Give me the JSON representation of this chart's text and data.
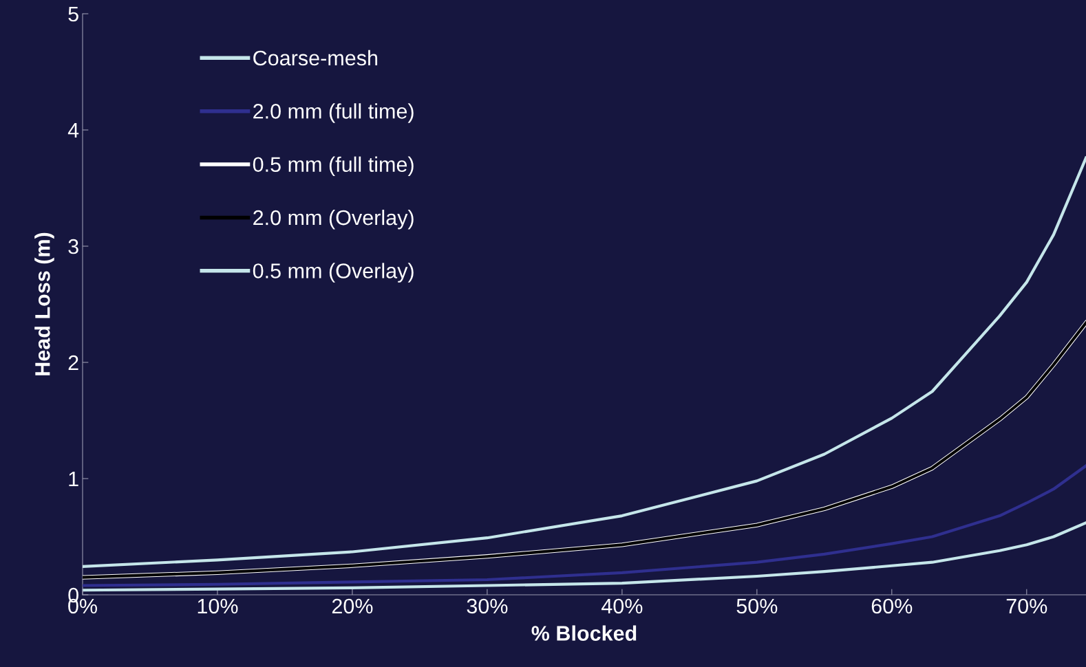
{
  "chart_data": {
    "type": "line",
    "xlabel": "% Blocked",
    "ylabel": "Head Loss (m)",
    "x": [
      0,
      10,
      20,
      30,
      40,
      50,
      55,
      60,
      63,
      68,
      70,
      72,
      74.4
    ],
    "series": [
      {
        "name": "Coarse-mesh",
        "color": "#c5e6ea",
        "values": [
          0.04,
          0.05,
          0.06,
          0.08,
          0.1,
          0.16,
          0.2,
          0.25,
          0.28,
          0.38,
          0.43,
          0.5,
          0.62
        ]
      },
      {
        "name": "2.0 mm (full time)",
        "color": "#2f2f8f",
        "values": [
          0.08,
          0.09,
          0.11,
          0.13,
          0.19,
          0.28,
          0.35,
          0.44,
          0.5,
          0.68,
          0.79,
          0.91,
          1.11
        ]
      },
      {
        "name": "0.5 mm (full time)",
        "color": "#ffffff",
        "values": [
          0.15,
          0.19,
          0.25,
          0.33,
          0.43,
          0.6,
          0.74,
          0.93,
          1.09,
          1.51,
          1.7,
          1.98,
          2.34
        ]
      },
      {
        "name": "2.0 mm (Overlay)",
        "color": "#000000",
        "values": [
          0.15,
          0.19,
          0.25,
          0.33,
          0.43,
          0.6,
          0.74,
          0.93,
          1.09,
          1.51,
          1.7,
          1.98,
          2.34
        ]
      },
      {
        "name": "0.5 mm (Overlay)",
        "color": "#c5e6ea",
        "values": [
          0.243,
          0.3,
          0.37,
          0.49,
          0.68,
          0.98,
          1.21,
          1.52,
          1.75,
          2.4,
          2.69,
          3.1,
          3.76
        ]
      }
    ],
    "xlim": [
      0,
      74.4
    ],
    "xticks": [
      {
        "value": 0,
        "label": "0%"
      },
      {
        "value": 10,
        "label": "10%"
      },
      {
        "value": 20,
        "label": "20%"
      },
      {
        "value": 30,
        "label": "30%"
      },
      {
        "value": 40,
        "label": "40%"
      },
      {
        "value": 50,
        "label": "50%"
      },
      {
        "value": 60,
        "label": "60%"
      },
      {
        "value": 70,
        "label": "70%"
      }
    ],
    "ylim": [
      0,
      5
    ],
    "yticks": [
      0,
      1,
      2,
      3,
      4,
      5
    ],
    "legend": "top left",
    "grid": false,
    "marker": "none",
    "line_style": "solid"
  }
}
